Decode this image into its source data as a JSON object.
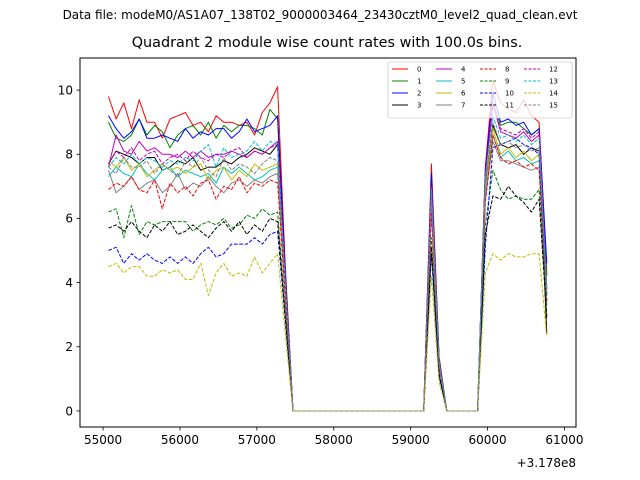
{
  "caption": "Data file: modeM0/AS1A07_138T02_9000003464_23430cztM0_level2_quad_clean.evt",
  "chart_data": {
    "type": "line",
    "title": "Quadrant 2 module wise count rates with 100.0s bins.",
    "xlabel": "",
    "ylabel": "",
    "x_offset_label": "+3.178e8",
    "xlim": [
      54700,
      61150
    ],
    "ylim": [
      -0.5,
      11
    ],
    "x_ticks": [
      55000,
      56000,
      57000,
      58000,
      59000,
      60000,
      61000
    ],
    "x_tick_labels": [
      "55000",
      "56000",
      "57000",
      "58000",
      "59000",
      "60000",
      "61000"
    ],
    "y_ticks": [
      0,
      2,
      4,
      6,
      8,
      10
    ],
    "y_tick_labels": [
      "0",
      "2",
      "4",
      "6",
      "8",
      "10"
    ],
    "legend_position": "top-right",
    "x": [
      55070,
      55170,
      55270,
      55370,
      55470,
      55570,
      55670,
      55770,
      55870,
      55970,
      56070,
      56170,
      56270,
      56370,
      56470,
      56570,
      56670,
      56770,
      56870,
      56970,
      57070,
      57170,
      57270,
      57370,
      57470,
      59170,
      59270,
      59370,
      59470,
      59870,
      59970,
      60070,
      60170,
      60270,
      60370,
      60470,
      60570,
      60670,
      60770
    ],
    "series": [
      {
        "name": "0",
        "color": "#ff0000",
        "dash": "solid",
        "values": [
          9.8,
          9.1,
          9.6,
          8.8,
          9.7,
          9.0,
          9.0,
          8.5,
          9.1,
          9.2,
          9.3,
          8.9,
          9.0,
          8.7,
          9.2,
          9.0,
          9.0,
          8.9,
          9.0,
          8.6,
          9.3,
          9.6,
          10.1,
          4.5,
          0.0,
          0.0,
          7.7,
          1.7,
          0.0,
          0.0,
          7.6,
          10.3,
          9.6,
          9.4,
          9.3,
          9.7,
          9.2,
          9.0,
          4.3
        ]
      },
      {
        "name": "1",
        "color": "#008000",
        "dash": "solid",
        "values": [
          9.0,
          8.5,
          8.4,
          8.6,
          9.1,
          8.6,
          8.9,
          8.7,
          8.2,
          8.6,
          8.8,
          8.9,
          8.6,
          9.0,
          8.5,
          8.9,
          8.7,
          8.9,
          8.9,
          8.8,
          8.6,
          9.4,
          9.1,
          4.3,
          0.0,
          0.0,
          7.3,
          1.6,
          0.0,
          0.0,
          7.4,
          9.6,
          8.9,
          9.0,
          9.0,
          8.8,
          8.6,
          8.8,
          4.2
        ]
      },
      {
        "name": "2",
        "color": "#0000ff",
        "dash": "solid",
        "values": [
          9.2,
          8.8,
          8.5,
          8.7,
          9.1,
          8.5,
          8.5,
          8.6,
          8.5,
          8.4,
          8.8,
          8.5,
          8.7,
          8.6,
          8.8,
          8.8,
          8.5,
          8.7,
          9.1,
          8.7,
          8.8,
          8.9,
          9.2,
          4.3,
          0.0,
          0.0,
          7.4,
          1.6,
          0.0,
          0.0,
          7.5,
          9.9,
          9.0,
          9.1,
          8.9,
          9.0,
          8.6,
          8.8,
          4.6
        ]
      },
      {
        "name": "3",
        "color": "#000000",
        "dash": "solid",
        "values": [
          7.7,
          8.1,
          8.0,
          7.9,
          7.7,
          7.9,
          7.9,
          7.5,
          7.6,
          7.8,
          7.7,
          7.9,
          7.5,
          7.6,
          7.6,
          7.8,
          7.7,
          7.9,
          8.0,
          8.2,
          8.1,
          8.0,
          8.3,
          3.9,
          0.0,
          0.0,
          6.7,
          1.5,
          0.0,
          0.0,
          7.0,
          8.9,
          8.3,
          8.2,
          8.3,
          8.0,
          8.2,
          8.1,
          2.4
        ]
      },
      {
        "name": "4",
        "color": "#bf00bf",
        "dash": "solid",
        "values": [
          7.6,
          8.6,
          8.1,
          8.0,
          8.4,
          8.1,
          8.2,
          8.0,
          8.0,
          7.9,
          8.1,
          7.9,
          8.1,
          7.9,
          8.0,
          8.0,
          8.1,
          8.0,
          7.9,
          8.1,
          8.0,
          8.2,
          8.4,
          4.0,
          0.0,
          0.0,
          7.0,
          1.5,
          0.0,
          0.0,
          7.3,
          9.6,
          8.7,
          8.6,
          8.5,
          8.7,
          8.4,
          8.6,
          3.8
        ]
      },
      {
        "name": "5",
        "color": "#00bfbf",
        "dash": "solid",
        "values": [
          7.3,
          7.6,
          7.4,
          7.3,
          7.7,
          7.4,
          7.2,
          7.5,
          7.6,
          7.3,
          7.5,
          7.4,
          7.3,
          7.4,
          7.1,
          7.6,
          7.4,
          7.6,
          7.4,
          7.2,
          7.3,
          7.5,
          7.6,
          3.7,
          0.0,
          0.0,
          6.4,
          1.4,
          0.0,
          0.0,
          6.8,
          8.6,
          7.9,
          8.1,
          7.8,
          7.9,
          7.7,
          7.8,
          3.4
        ]
      },
      {
        "name": "6",
        "color": "#bfbf00",
        "dash": "solid",
        "values": [
          7.8,
          7.6,
          7.9,
          7.5,
          7.7,
          7.3,
          7.5,
          7.7,
          7.5,
          7.6,
          7.4,
          7.6,
          7.7,
          7.2,
          7.5,
          7.6,
          7.2,
          7.5,
          7.3,
          7.7,
          7.5,
          7.6,
          7.7,
          3.7,
          0.0,
          0.0,
          6.5,
          1.4,
          0.0,
          0.0,
          6.9,
          8.8,
          8.0,
          8.2,
          7.9,
          8.1,
          7.8,
          8.0,
          3.6
        ]
      },
      {
        "name": "7",
        "color": "#808080",
        "dash": "solid",
        "values": [
          7.5,
          6.8,
          7.0,
          7.3,
          6.9,
          7.1,
          7.2,
          6.8,
          7.0,
          7.4,
          6.9,
          7.1,
          7.0,
          7.3,
          7.0,
          6.8,
          7.1,
          7.2,
          7.0,
          7.2,
          7.1,
          7.3,
          7.4,
          3.6,
          0.0,
          0.0,
          6.3,
          1.4,
          0.0,
          0.0,
          6.6,
          8.4,
          7.8,
          7.8,
          7.7,
          7.6,
          7.5,
          7.6,
          3.3
        ]
      },
      {
        "name": "8",
        "color": "#ff0000",
        "dash": "dashed",
        "values": [
          6.9,
          7.1,
          7.0,
          7.3,
          6.9,
          6.8,
          7.2,
          6.3,
          7.1,
          6.8,
          7.0,
          6.7,
          7.1,
          7.2,
          6.6,
          7.0,
          6.9,
          7.3,
          6.8,
          7.1,
          7.0,
          7.2,
          7.1,
          3.5,
          0.0,
          0.0,
          6.2,
          1.4,
          0.0,
          0.0,
          6.5,
          8.6,
          7.9,
          7.7,
          7.8,
          7.6,
          7.7,
          7.5,
          3.4
        ]
      },
      {
        "name": "9",
        "color": "#008000",
        "dash": "dashed",
        "values": [
          6.2,
          6.3,
          5.4,
          6.4,
          5.5,
          5.9,
          5.8,
          5.9,
          5.9,
          5.9,
          5.9,
          5.6,
          5.8,
          5.9,
          5.8,
          6.0,
          5.7,
          5.8,
          6.1,
          6.0,
          6.3,
          6.1,
          6.2,
          3.1,
          0.0,
          0.0,
          5.4,
          1.2,
          0.0,
          0.0,
          5.8,
          7.5,
          6.9,
          6.6,
          6.7,
          6.6,
          6.6,
          6.9,
          3.0
        ]
      },
      {
        "name": "10",
        "color": "#0000ff",
        "dash": "dashed",
        "values": [
          5.0,
          5.1,
          4.6,
          4.9,
          4.7,
          4.9,
          4.7,
          4.6,
          4.8,
          4.6,
          4.8,
          4.6,
          4.9,
          5.1,
          4.8,
          4.9,
          5.2,
          5.2,
          5.2,
          5.4,
          5.2,
          5.5,
          5.6,
          2.8,
          0.0,
          0.0,
          4.9,
          1.1,
          0.0,
          0.0,
          5.1,
          8.2,
          8.3,
          8.4,
          8.5,
          8.3,
          8.2,
          8.0,
          3.6
        ]
      },
      {
        "name": "11",
        "color": "#000000",
        "dash": "dashed",
        "values": [
          5.7,
          5.8,
          5.6,
          5.9,
          5.6,
          5.4,
          5.8,
          5.6,
          5.9,
          5.5,
          5.6,
          5.8,
          5.6,
          5.4,
          5.7,
          5.9,
          5.6,
          5.9,
          5.5,
          5.8,
          5.6,
          6.0,
          5.9,
          2.9,
          0.0,
          0.0,
          5.1,
          1.1,
          0.0,
          0.0,
          5.5,
          6.7,
          6.6,
          7.0,
          6.7,
          6.5,
          6.2,
          6.6,
          2.9
        ]
      },
      {
        "name": "12",
        "color": "#bf00bf",
        "dash": "dashed",
        "values": [
          7.7,
          8.1,
          7.9,
          8.2,
          7.8,
          8.0,
          8.1,
          7.7,
          7.9,
          8.0,
          7.8,
          8.1,
          7.9,
          7.8,
          8.0,
          7.9,
          8.1,
          8.2,
          7.9,
          8.1,
          8.0,
          8.2,
          8.3,
          4.0,
          0.0,
          0.0,
          7.0,
          1.5,
          0.0,
          0.0,
          7.4,
          9.5,
          8.8,
          8.7,
          8.6,
          8.8,
          8.5,
          8.7,
          3.8
        ]
      },
      {
        "name": "13",
        "color": "#00bfbf",
        "dash": "dashed",
        "values": [
          7.6,
          7.9,
          7.7,
          8.0,
          7.7,
          7.9,
          7.8,
          7.6,
          7.8,
          7.7,
          7.9,
          7.8,
          8.1,
          8.3,
          7.6,
          8.2,
          7.9,
          8.0,
          8.1,
          8.4,
          8.1,
          8.4,
          8.3,
          4.0,
          0.0,
          0.0,
          6.9,
          1.5,
          0.0,
          0.0,
          7.3,
          9.2,
          8.5,
          8.6,
          8.4,
          8.6,
          8.3,
          8.5,
          3.7
        ]
      },
      {
        "name": "14",
        "color": "#bfbf00",
        "dash": "dashed",
        "values": [
          4.5,
          4.6,
          4.3,
          4.5,
          4.5,
          4.2,
          4.2,
          4.4,
          4.3,
          4.4,
          4.1,
          4.1,
          4.6,
          3.6,
          4.3,
          4.6,
          4.2,
          4.3,
          4.2,
          4.8,
          4.3,
          4.6,
          4.9,
          2.4,
          0.0,
          0.0,
          4.2,
          0.9,
          0.0,
          0.0,
          4.3,
          4.9,
          4.7,
          4.9,
          4.8,
          4.8,
          4.9,
          4.9,
          2.3
        ]
      },
      {
        "name": "15",
        "color": "#808080",
        "dash": "dashed",
        "values": [
          7.6,
          7.4,
          7.9,
          7.6,
          7.6,
          7.8,
          7.4,
          7.7,
          7.5,
          7.3,
          7.8,
          7.6,
          7.9,
          7.5,
          7.3,
          7.9,
          7.5,
          7.7,
          7.6,
          7.4,
          7.7,
          7.9,
          7.8,
          3.8,
          0.0,
          0.0,
          6.7,
          1.5,
          0.0,
          0.0,
          7.0,
          9.0,
          8.3,
          8.4,
          8.2,
          8.3,
          8.1,
          8.2,
          3.6
        ]
      }
    ]
  }
}
